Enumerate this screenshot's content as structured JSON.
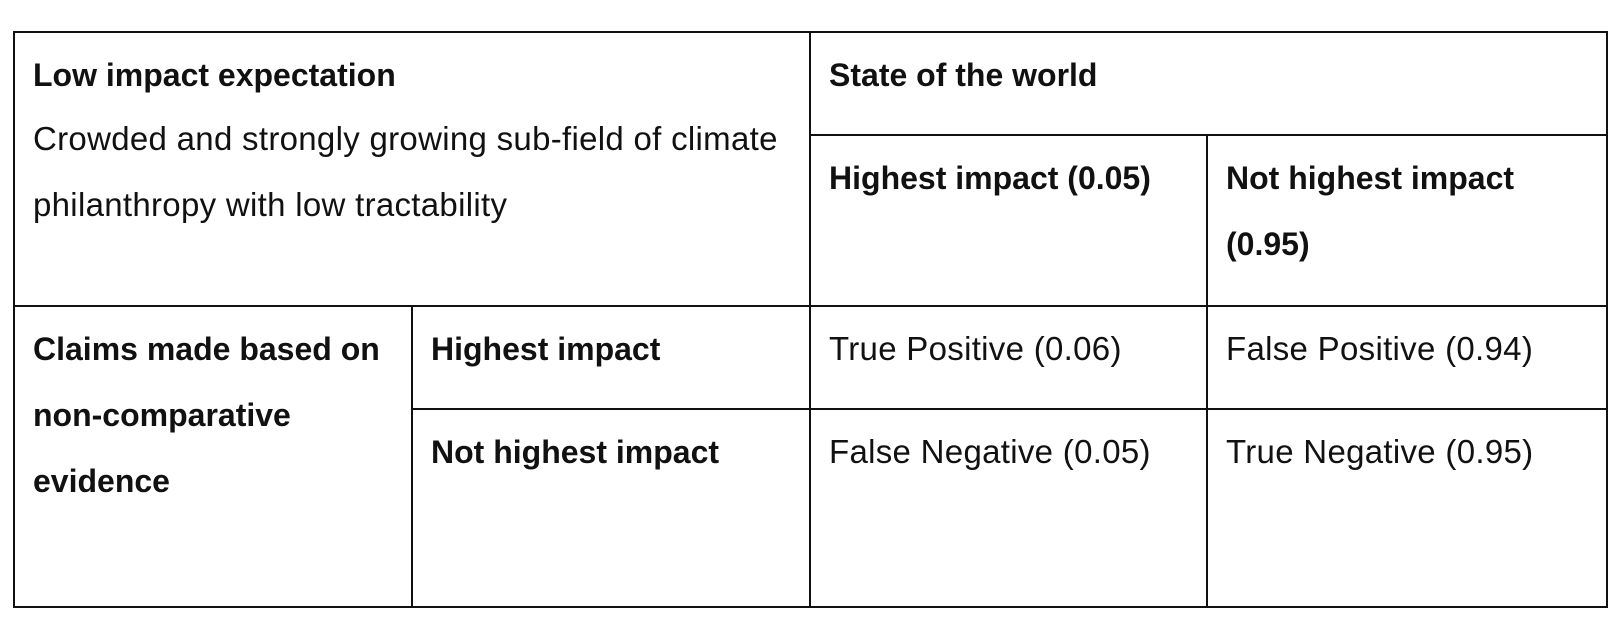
{
  "table": {
    "corner": {
      "title": "Low impact expectation",
      "description": "Crowded and strongly growing sub-field of climate philanthropy with low tractability"
    },
    "column_group": "State of the world",
    "columns": [
      "Highest impact (0.05)",
      "Not highest impact (0.95)"
    ],
    "row_group": "Claims made based on non-comparative evidence",
    "rows": [
      {
        "label": "Highest impact",
        "cells": [
          "True Positive (0.06)",
          "False Positive (0.94)"
        ]
      },
      {
        "label": "Not highest impact",
        "cells": [
          "False Negative (0.05)",
          "True Negative (0.95)"
        ]
      }
    ]
  }
}
